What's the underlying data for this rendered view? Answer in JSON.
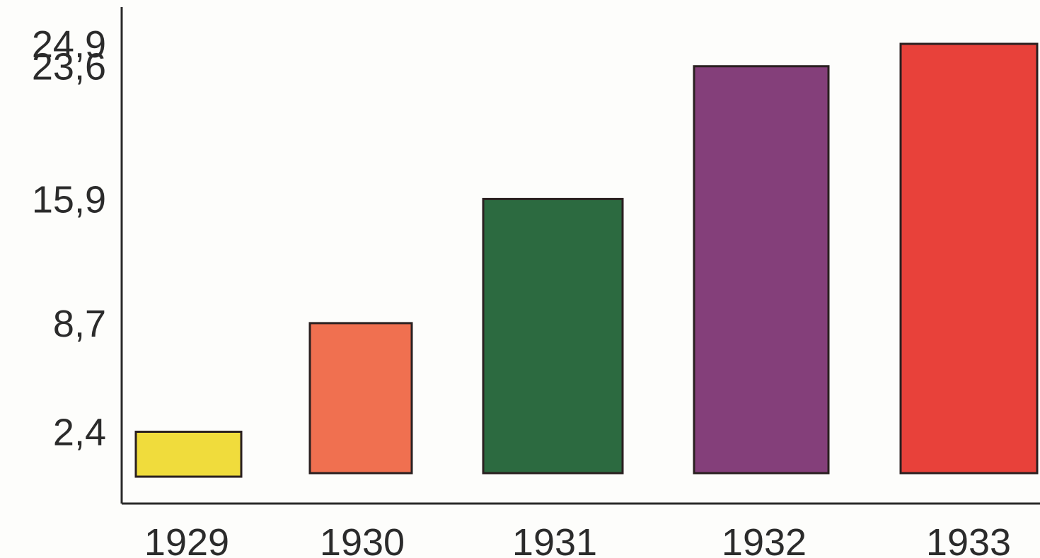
{
  "chart_data": {
    "type": "bar",
    "categories": [
      "1929",
      "1930",
      "1931",
      "1932",
      "1933"
    ],
    "values": [
      2.4,
      8.7,
      15.9,
      23.6,
      24.9
    ],
    "value_labels": [
      "2,4",
      "8,7",
      "15,9",
      "23,6",
      "24,9"
    ],
    "y_tick_values": [
      2.4,
      8.7,
      15.9,
      23.6,
      24.9
    ],
    "y_tick_labels": [
      "2,4",
      "8,7",
      "15,9",
      "23,6",
      "24,9"
    ],
    "colors": [
      "#f0dc3c",
      "#f07050",
      "#2c6a40",
      "#843f7a",
      "#e8413a"
    ],
    "title": "",
    "xlabel": "",
    "ylabel": "",
    "ylim": [
      0,
      27
    ],
    "grid": false,
    "legend": "none"
  }
}
